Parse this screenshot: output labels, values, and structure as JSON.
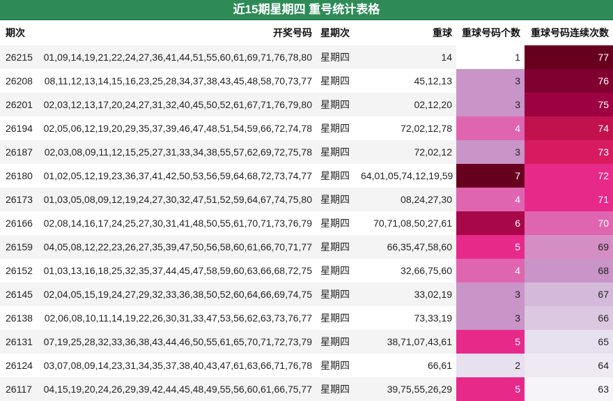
{
  "title": "近15期星期四 重号统计表格",
  "headers": {
    "period": "期次",
    "numbers": "开奖号码",
    "weekday": "星期次",
    "repeat": "重球",
    "count": "重球号码个数",
    "streak": "重球号码连续次数"
  },
  "rows": [
    {
      "period": "26215",
      "numbers": "01,09,14,19,21,22,24,27,36,41,44,51,55,60,61,69,71,76,78,80",
      "weekday": "星期四",
      "repeat": "14",
      "count": 1,
      "streak": 77,
      "count_color": "#ffffff",
      "streak_color": "#67001f"
    },
    {
      "period": "26208",
      "numbers": "08,11,12,13,14,15,16,23,25,28,34,37,38,43,45,48,58,70,73,77",
      "weekday": "星期四",
      "repeat": "45,12,13",
      "count": 3,
      "streak": 76,
      "count_color": "#c994c7",
      "streak_color": "#800030"
    },
    {
      "period": "26201",
      "numbers": "02,03,12,13,17,20,24,27,31,32,40,45,50,52,61,67,71,76,79,80",
      "weekday": "星期四",
      "repeat": "02,12,20",
      "count": 3,
      "streak": 75,
      "count_color": "#c994c7",
      "streak_color": "#9e0142"
    },
    {
      "period": "26194",
      "numbers": "02,05,06,12,19,20,29,35,37,39,46,47,48,51,54,59,66,72,74,78",
      "weekday": "星期四",
      "repeat": "72,02,12,78",
      "count": 4,
      "streak": 74,
      "count_color": "#df65b0",
      "streak_color": "#c2124d"
    },
    {
      "period": "26187",
      "numbers": "02,03,08,09,11,12,15,25,27,31,33,34,38,55,57,62,69,72,75,78",
      "weekday": "星期四",
      "repeat": "72,02,12",
      "count": 3,
      "streak": 73,
      "count_color": "#c994c7",
      "streak_color": "#d81b60"
    },
    {
      "period": "26180",
      "numbers": "01,02,05,12,19,23,36,37,41,42,50,53,56,59,64,68,72,73,74,77",
      "weekday": "星期四",
      "repeat": "64,01,05,74,12,19,59",
      "count": 7,
      "streak": 72,
      "count_color": "#67001f",
      "streak_color": "#e7298a"
    },
    {
      "period": "26173",
      "numbers": "01,03,05,08,09,12,19,24,27,30,32,47,51,52,59,64,67,74,75,80",
      "weekday": "星期四",
      "repeat": "08,24,27,30",
      "count": 4,
      "streak": 71,
      "count_color": "#df65b0",
      "streak_color": "#e7298a"
    },
    {
      "period": "26166",
      "numbers": "02,08,14,16,17,24,25,27,30,31,41,48,50,55,61,70,71,73,76,79",
      "weekday": "星期四",
      "repeat": "70,71,08,50,27,61",
      "count": 6,
      "streak": 70,
      "count_color": "#a8074a",
      "streak_color": "#df65b0"
    },
    {
      "period": "26159",
      "numbers": "04,05,08,12,22,23,26,27,35,39,47,50,56,58,60,61,66,70,71,77",
      "weekday": "星期四",
      "repeat": "66,35,47,58,60",
      "count": 5,
      "streak": 69,
      "count_color": "#e7298a",
      "streak_color": "#d48ec4"
    },
    {
      "period": "26152",
      "numbers": "01,03,13,16,18,25,32,35,37,44,45,47,58,59,60,63,66,68,72,75",
      "weekday": "星期四",
      "repeat": "32,66,75,60",
      "count": 4,
      "streak": 68,
      "count_color": "#df65b0",
      "streak_color": "#c994c7"
    },
    {
      "period": "26145",
      "numbers": "02,04,05,15,19,24,27,29,32,33,36,38,50,52,60,64,66,69,74,75",
      "weekday": "星期四",
      "repeat": "33,02,19",
      "count": 3,
      "streak": 67,
      "count_color": "#c994c7",
      "streak_color": "#d4b9da"
    },
    {
      "period": "26138",
      "numbers": "02,06,08,10,11,14,19,22,26,30,31,33,47,53,56,62,63,73,76,77",
      "weekday": "星期四",
      "repeat": "73,33,19",
      "count": 3,
      "streak": 66,
      "count_color": "#c994c7",
      "streak_color": "#dcc8e0"
    },
    {
      "period": "26131",
      "numbers": "07,19,25,28,32,33,36,38,43,44,46,50,55,61,65,70,71,72,73,79",
      "weekday": "星期四",
      "repeat": "38,71,07,43,61",
      "count": 5,
      "streak": 65,
      "count_color": "#e7298a",
      "streak_color": "#e7e1ef"
    },
    {
      "period": "26124",
      "numbers": "03,07,08,09,14,23,31,34,35,37,38,40,43,47,61,63,66,71,76,78",
      "weekday": "星期四",
      "repeat": "66,61",
      "count": 2,
      "streak": 64,
      "count_color": "#e7e1ef",
      "streak_color": "#efe9f3"
    },
    {
      "period": "26117",
      "numbers": "04,15,19,20,24,26,29,39,42,44,45,48,49,55,56,60,61,66,75,77",
      "weekday": "星期四",
      "repeat": "39,75,55,26,29",
      "count": 5,
      "streak": 63,
      "count_color": "#e7298a",
      "streak_color": "#f7f4f9"
    }
  ]
}
